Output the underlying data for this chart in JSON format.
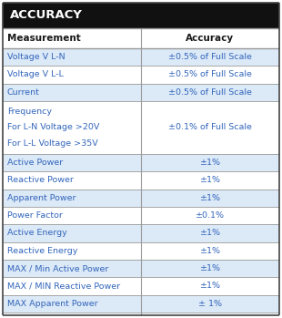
{
  "title": "ACCURACY",
  "title_bg": "#111111",
  "title_color": "#ffffff",
  "header_row": [
    "Measurement",
    "Accuracy"
  ],
  "header_bg": "#ffffff",
  "header_color": "#1a1a1a",
  "rows": [
    [
      "Voltage V L-N",
      "±0.5% of Full Scale"
    ],
    [
      "Voltage V L-L",
      "±0.5% of Full Scale"
    ],
    [
      "Current",
      "±0.5% of Full Scale"
    ],
    [
      "Frequency\nFor L-N Voltage >20V\nFor L-L Voltage >35V",
      "±0.1% of Full Scale"
    ],
    [
      "Active Power",
      "±1%"
    ],
    [
      "Reactive Power",
      "±1%"
    ],
    [
      "Apparent Power",
      "±1%"
    ],
    [
      "Power Factor",
      "±0.1%"
    ],
    [
      "Active Energy",
      "±1%"
    ],
    [
      "Reactive Energy",
      "±1%"
    ],
    [
      "MAX / Min Active Power",
      "±1%"
    ],
    [
      "MAX / MIN Reactive Power",
      "±1%"
    ],
    [
      "MAX Apparent Power",
      "± 1%"
    ]
  ],
  "row_bg_odd": "#dce9f7",
  "row_bg_even": "#ffffff",
  "text_color": "#3366bb",
  "border_color": "#999999",
  "col_split": 0.5,
  "fig_bg": "#ffffff",
  "outer_border_color": "#444444",
  "title_fontsize": 9.5,
  "header_fontsize": 7.5,
  "row_fontsize": 6.8
}
